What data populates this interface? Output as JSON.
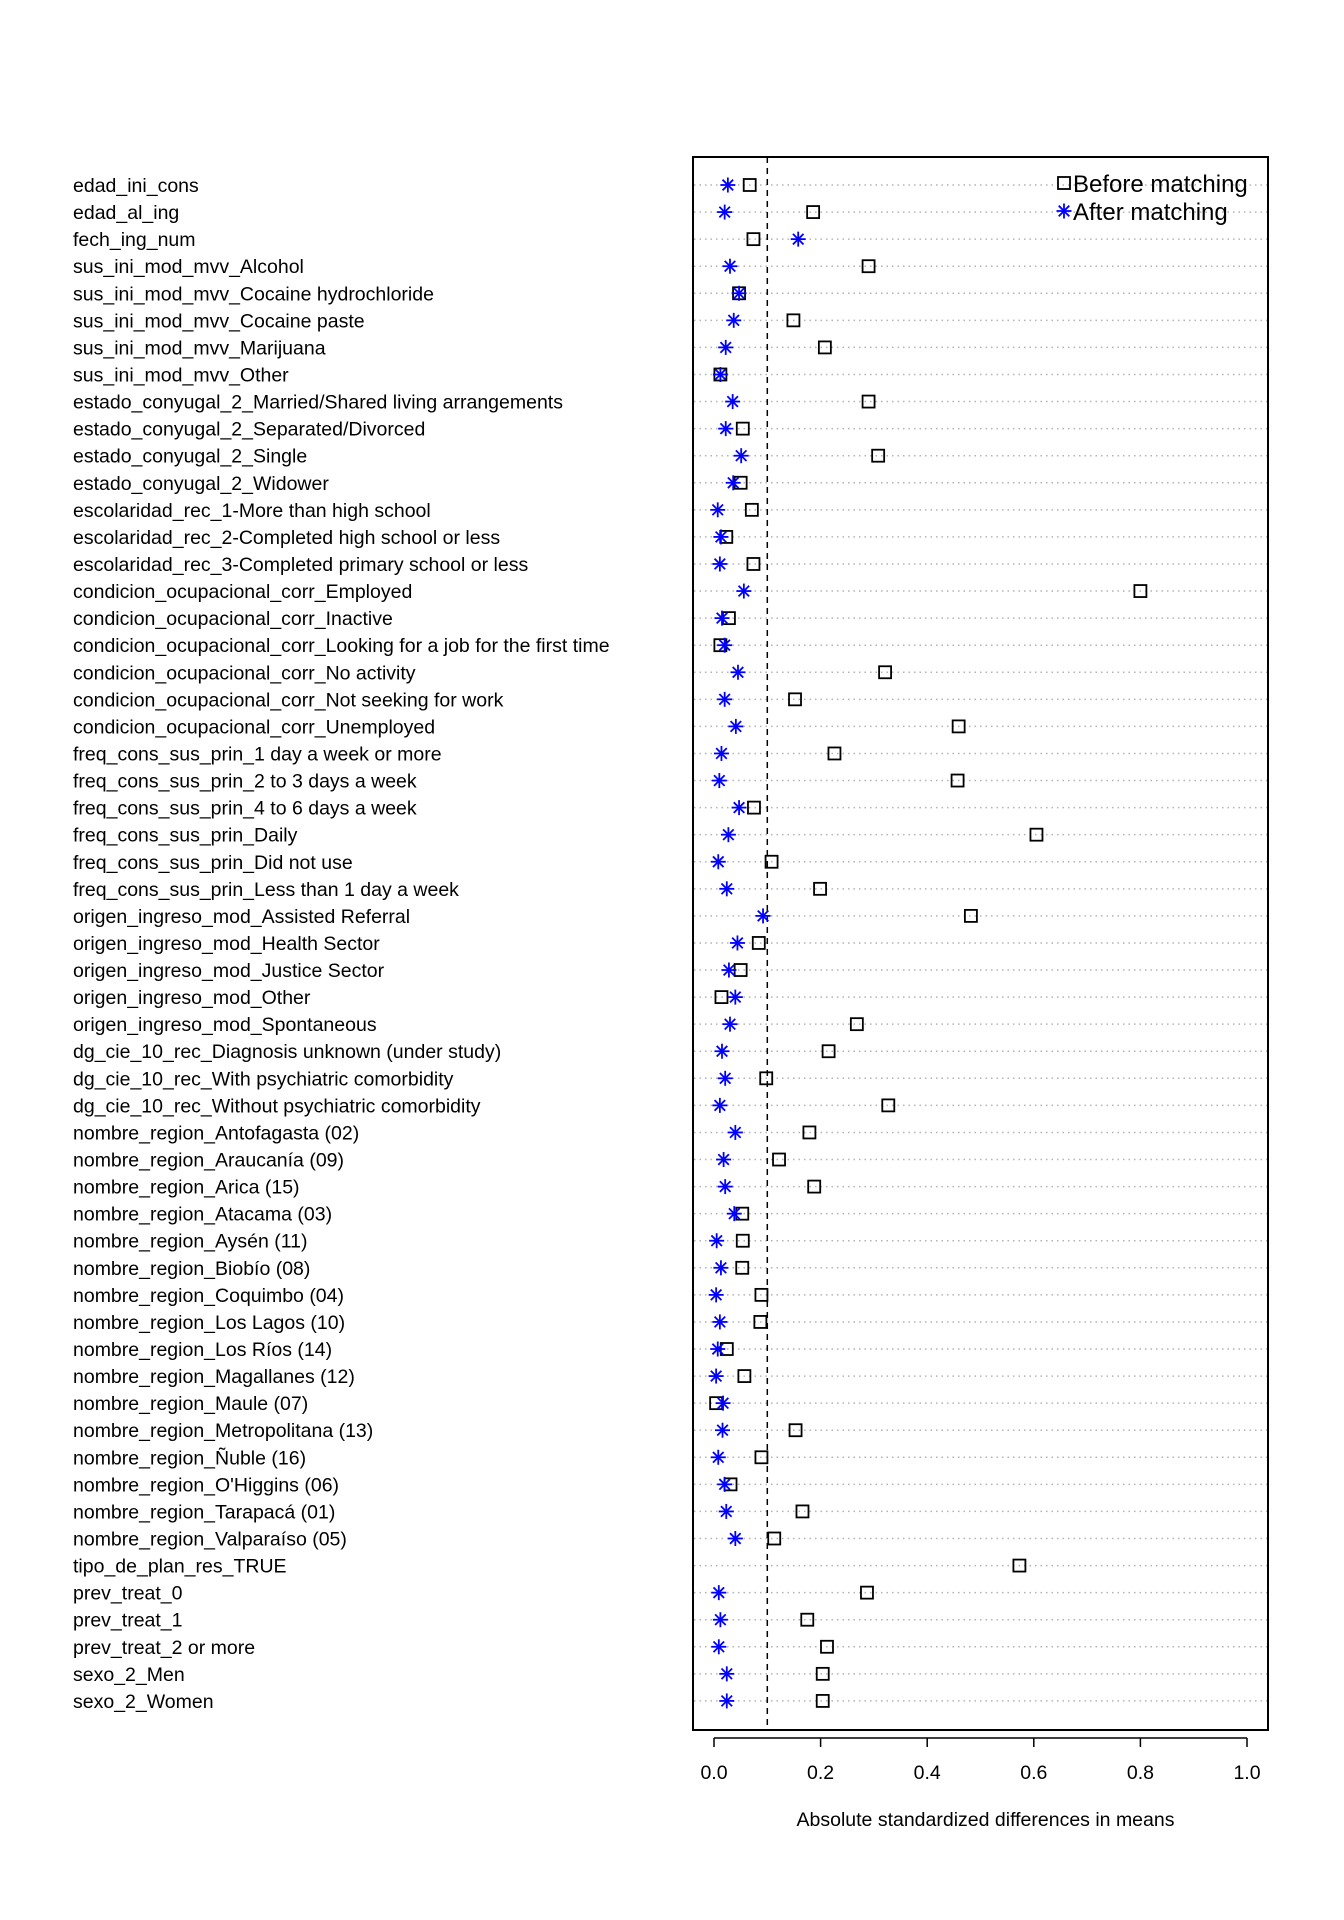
{
  "chart_data": {
    "type": "scatter",
    "xlabel": "Absolute standardized differences in means",
    "xlim": [
      0,
      1.0
    ],
    "xticks": [
      "0.0",
      "0.2",
      "0.4",
      "0.6",
      "0.8",
      "1.0"
    ],
    "reference_line": 0.1,
    "legend_position": "top-right",
    "grid": "dotted horizontal lines per row",
    "colors": {
      "before": "#000000",
      "after": "#0000ff"
    },
    "series": [
      {
        "name": "Before matching",
        "marker": "open-square"
      },
      {
        "name": "After matching",
        "marker": "asterisk"
      }
    ],
    "rows": [
      {
        "label": "edad_ini_cons",
        "before": 0.067,
        "after": 0.026
      },
      {
        "label": "edad_al_ing",
        "before": 0.186,
        "after": 0.02
      },
      {
        "label": "fech_ing_num",
        "before": 0.074,
        "after": 0.158
      },
      {
        "label": "sus_ini_mod_mvv_Alcohol",
        "before": 0.29,
        "after": 0.03
      },
      {
        "label": "sus_ini_mod_mvv_Cocaine hydrochloride",
        "before": 0.047,
        "after": 0.047
      },
      {
        "label": "sus_ini_mod_mvv_Cocaine paste",
        "before": 0.149,
        "after": 0.037
      },
      {
        "label": "sus_ini_mod_mvv_Marijuana",
        "before": 0.208,
        "after": 0.022
      },
      {
        "label": "sus_ini_mod_mvv_Other",
        "before": 0.012,
        "after": 0.012
      },
      {
        "label": "estado_conyugal_2_Married/Shared living arrangements",
        "before": 0.29,
        "after": 0.035
      },
      {
        "label": "estado_conyugal_2_Separated/Divorced",
        "before": 0.054,
        "after": 0.022
      },
      {
        "label": "estado_conyugal_2_Single",
        "before": 0.308,
        "after": 0.051
      },
      {
        "label": "estado_conyugal_2_Widower",
        "before": 0.05,
        "after": 0.036
      },
      {
        "label": "escolaridad_rec_1-More than high school",
        "before": 0.071,
        "after": 0.007
      },
      {
        "label": "escolaridad_rec_2-Completed high school or less",
        "before": 0.023,
        "after": 0.013
      },
      {
        "label": "escolaridad_rec_3-Completed primary school or less",
        "before": 0.074,
        "after": 0.011
      },
      {
        "label": "condicion_ocupacional_corr_Employed",
        "before": 0.8,
        "after": 0.056
      },
      {
        "label": "condicion_ocupacional_corr_Inactive",
        "before": 0.028,
        "after": 0.015
      },
      {
        "label": "condicion_ocupacional_corr_Looking for a job for the first time",
        "before": 0.012,
        "after": 0.02
      },
      {
        "label": "condicion_ocupacional_corr_No activity",
        "before": 0.321,
        "after": 0.045
      },
      {
        "label": "condicion_ocupacional_corr_Not seeking for work",
        "before": 0.152,
        "after": 0.02
      },
      {
        "label": "condicion_ocupacional_corr_Unemployed",
        "before": 0.459,
        "after": 0.041
      },
      {
        "label": "freq_cons_sus_prin_1 day a week or more",
        "before": 0.226,
        "after": 0.014
      },
      {
        "label": "freq_cons_sus_prin_2 to 3 days a week",
        "before": 0.457,
        "after": 0.01
      },
      {
        "label": "freq_cons_sus_prin_4 to 6 days a week",
        "before": 0.075,
        "after": 0.047
      },
      {
        "label": "freq_cons_sus_prin_Daily",
        "before": 0.605,
        "after": 0.027
      },
      {
        "label": "freq_cons_sus_prin_Did not use",
        "before": 0.108,
        "after": 0.008
      },
      {
        "label": "freq_cons_sus_prin_Less than 1 day a week",
        "before": 0.199,
        "after": 0.024
      },
      {
        "label": "origen_ingreso_mod_Assisted Referral",
        "before": 0.482,
        "after": 0.092
      },
      {
        "label": "origen_ingreso_mod_Health Sector",
        "before": 0.084,
        "after": 0.044
      },
      {
        "label": "origen_ingreso_mod_Justice Sector",
        "before": 0.05,
        "after": 0.028
      },
      {
        "label": "origen_ingreso_mod_Other",
        "before": 0.014,
        "after": 0.04
      },
      {
        "label": "origen_ingreso_mod_Spontaneous",
        "before": 0.268,
        "after": 0.03
      },
      {
        "label": "dg_cie_10_rec_Diagnosis unknown (under study)",
        "before": 0.215,
        "after": 0.015
      },
      {
        "label": "dg_cie_10_rec_With psychiatric comorbidity",
        "before": 0.098,
        "after": 0.021
      },
      {
        "label": "dg_cie_10_rec_Without psychiatric comorbidity",
        "before": 0.327,
        "after": 0.011
      },
      {
        "label": "nombre_region_Antofagasta (02)",
        "before": 0.179,
        "after": 0.04
      },
      {
        "label": "nombre_region_Araucanía (09)",
        "before": 0.122,
        "after": 0.018
      },
      {
        "label": "nombre_region_Arica (15)",
        "before": 0.188,
        "after": 0.021
      },
      {
        "label": "nombre_region_Atacama (03)",
        "before": 0.053,
        "after": 0.038
      },
      {
        "label": "nombre_region_Aysén (11)",
        "before": 0.054,
        "after": 0.005
      },
      {
        "label": "nombre_region_Biobío (08)",
        "before": 0.053,
        "after": 0.013
      },
      {
        "label": "nombre_region_Coquimbo (04)",
        "before": 0.089,
        "after": 0.004
      },
      {
        "label": "nombre_region_Los Lagos (10)",
        "before": 0.087,
        "after": 0.011
      },
      {
        "label": "nombre_region_Los Ríos (14)",
        "before": 0.024,
        "after": 0.007
      },
      {
        "label": "nombre_region_Magallanes (12)",
        "before": 0.057,
        "after": 0.004
      },
      {
        "label": "nombre_region_Maule (07)",
        "before": 0.004,
        "after": 0.017
      },
      {
        "label": "nombre_region_Metropolitana (13)",
        "before": 0.153,
        "after": 0.016
      },
      {
        "label": "nombre_region_Ñuble (16)",
        "before": 0.089,
        "after": 0.008
      },
      {
        "label": "nombre_region_O'Higgins (06)",
        "before": 0.031,
        "after": 0.02
      },
      {
        "label": "nombre_region_Tarapacá (01)",
        "before": 0.166,
        "after": 0.023
      },
      {
        "label": "nombre_region_Valparaíso (05)",
        "before": 0.113,
        "after": 0.04
      },
      {
        "label": "tipo_de_plan_res_TRUE",
        "before": 0.573,
        "after": null
      },
      {
        "label": "prev_treat_0",
        "before": 0.287,
        "after": 0.009
      },
      {
        "label": "prev_treat_1",
        "before": 0.175,
        "after": 0.012
      },
      {
        "label": "prev_treat_2 or more",
        "before": 0.212,
        "after": 0.009
      },
      {
        "label": "sexo_2_Men",
        "before": 0.204,
        "after": 0.024
      },
      {
        "label": "sexo_2_Women",
        "before": 0.204,
        "after": 0.024
      }
    ]
  }
}
